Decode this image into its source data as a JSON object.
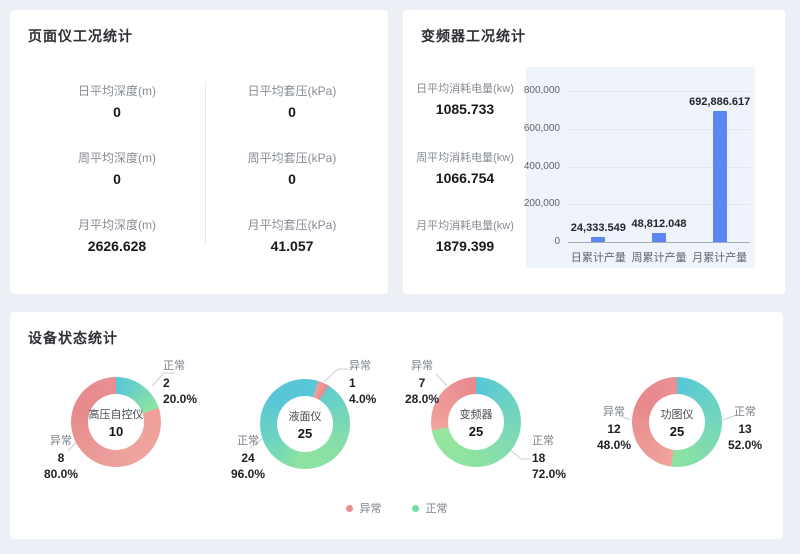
{
  "panels": {
    "gauge": {
      "title": "页面仪工况统计",
      "stats": [
        {
          "label": "日平均深度(m)",
          "value": "0"
        },
        {
          "label": "日平均套压(kPa)",
          "value": "0"
        },
        {
          "label": "周平均深度(m)",
          "value": "0"
        },
        {
          "label": "周平均套压(kPa)",
          "value": "0"
        },
        {
          "label": "月平均深度(m)",
          "value": "2626.628"
        },
        {
          "label": "月平均套压(kPa)",
          "value": "41.057"
        }
      ]
    },
    "inverter": {
      "title": "变频器工况统计",
      "stats": [
        {
          "label": "日平均消耗电量(kw)",
          "value": "1085.733"
        },
        {
          "label": "周平均消耗电量(kw)",
          "value": "1066.754"
        },
        {
          "label": "月平均消耗电量(kw)",
          "value": "1879.399"
        }
      ]
    },
    "device_status": {
      "title": "设备状态统计"
    }
  },
  "chart_data": [
    {
      "type": "bar",
      "title": "",
      "categories": [
        "日累计产量",
        "周累计产量",
        "月累计产量"
      ],
      "values": [
        24333.549,
        48812.048,
        692886.617
      ],
      "data_labels": [
        "24,333.549",
        "48,812.048",
        "692,886.617"
      ],
      "xlabel": "",
      "ylabel": "",
      "ylim": [
        0,
        800000
      ],
      "yticks": [
        0,
        200000,
        400000,
        600000,
        800000
      ],
      "ytick_labels": [
        "0",
        "200,000",
        "400,000",
        "600,000",
        "800,000"
      ],
      "bar_color": "#5b87f2",
      "plot_background": "#eff4fa",
      "grid": true,
      "legend_position": "none"
    },
    {
      "type": "pie",
      "subtype": "donut",
      "colors": {
        "abnormal": "#e88e8e",
        "normal_teal": "#57c7d6",
        "normal_green": "#8ee3a0"
      },
      "legend": [
        {
          "label": "异常",
          "color": "#e88c8c"
        },
        {
          "label": "正常",
          "color": "#6edfa4"
        }
      ],
      "donuts": [
        {
          "name": "高压自控仪",
          "total": "10",
          "slices": [
            {
              "label": "正常",
              "value": "2",
              "percent": "20.0%"
            },
            {
              "label": "异常",
              "value": "8",
              "percent": "80.0%"
            }
          ]
        },
        {
          "name": "液面仪",
          "total": "25",
          "slices": [
            {
              "label": "异常",
              "value": "1",
              "percent": "4.0%"
            },
            {
              "label": "正常",
              "value": "24",
              "percent": "96.0%"
            }
          ]
        },
        {
          "name": "变频器",
          "total": "25",
          "slices": [
            {
              "label": "异常",
              "value": "7",
              "percent": "28.0%"
            },
            {
              "label": "正常",
              "value": "18",
              "percent": "72.0%"
            }
          ]
        },
        {
          "name": "功图仪",
          "total": "25",
          "slices": [
            {
              "label": "异常",
              "value": "12",
              "percent": "48.0%"
            },
            {
              "label": "正常",
              "value": "13",
              "percent": "52.0%"
            }
          ]
        }
      ]
    }
  ]
}
